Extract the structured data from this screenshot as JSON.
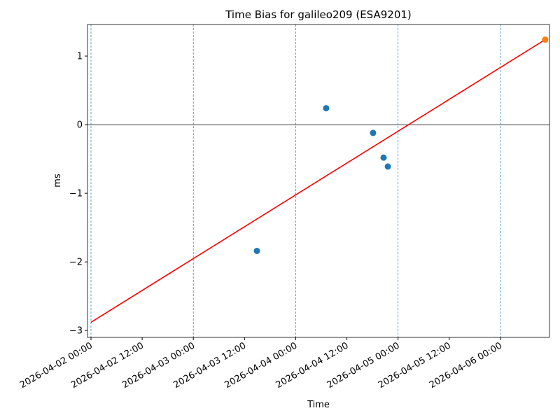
{
  "chart_data": {
    "type": "scatter",
    "title": "Time Bias for galileo209 (ESA9201)",
    "xlabel": "Time",
    "ylabel": "ms",
    "xlim": [
      "2026-04-01 23:11",
      "2026-04-06 11:30"
    ],
    "xticks": [
      "2026-04-02 00:00",
      "2026-04-02 12:00",
      "2026-04-03 00:00",
      "2026-04-03 12:00",
      "2026-04-04 00:00",
      "2026-04-04 12:00",
      "2026-04-05 00:00",
      "2026-04-05 12:00",
      "2026-04-06 00:00"
    ],
    "ylim": [
      -3.1,
      1.46
    ],
    "yticks": [
      {
        "value": -3,
        "label": "−3"
      },
      {
        "value": -2,
        "label": "−2"
      },
      {
        "value": -1,
        "label": "−1"
      },
      0,
      1
    ],
    "vlines": [
      "2026-04-02 00:00",
      "2026-04-03 00:00",
      "2026-04-04 00:00",
      "2026-04-05 00:00",
      "2026-04-06 00:00"
    ],
    "vline_color": "#1f77b4",
    "hline": 0,
    "series": [
      {
        "kind": "scatter",
        "color": "#1f77b4",
        "x": [
          "2026-04-03 14:54",
          "2026-04-04 07:08",
          "2026-04-04 18:08",
          "2026-04-04 20:36",
          "2026-04-04 21:36"
        ],
        "values": [
          -1.84,
          0.24,
          -0.12,
          -0.48,
          -0.61
        ]
      },
      {
        "kind": "line",
        "color": "#ff0000",
        "x": [
          "2026-04-02 00:00",
          "2026-04-06 10:30"
        ],
        "values": [
          -2.88,
          1.24
        ]
      },
      {
        "kind": "scatter",
        "color": "#ff7f0e",
        "x": [
          "2026-04-06 10:30"
        ],
        "values": [
          1.24
        ]
      }
    ]
  }
}
